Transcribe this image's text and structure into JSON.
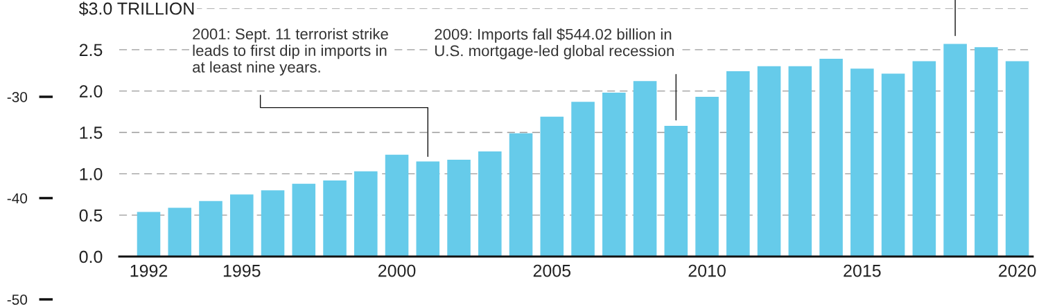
{
  "chart_data": {
    "type": "bar",
    "x": [
      1992,
      1993,
      1994,
      1995,
      1996,
      1997,
      1998,
      1999,
      2000,
      2001,
      2002,
      2003,
      2004,
      2005,
      2006,
      2007,
      2008,
      2009,
      2010,
      2011,
      2012,
      2013,
      2014,
      2015,
      2016,
      2017,
      2018,
      2019,
      2020
    ],
    "values": [
      0.54,
      0.59,
      0.67,
      0.75,
      0.8,
      0.88,
      0.92,
      1.03,
      1.23,
      1.15,
      1.17,
      1.27,
      1.49,
      1.69,
      1.87,
      1.98,
      2.12,
      1.58,
      1.93,
      2.24,
      2.3,
      2.3,
      2.39,
      2.27,
      2.21,
      2.36,
      2.57,
      2.53,
      2.36
    ],
    "color": "#66cbea",
    "xlim": [
      1991.05,
      2020.5
    ],
    "xticks": [
      1992,
      1995,
      2000,
      2005,
      2010,
      2015,
      2020
    ],
    "ylim": [
      0,
      3
    ],
    "yticks": [
      {
        "value": 0.0,
        "label": "0.0"
      },
      {
        "value": 0.5,
        "label": "0.5"
      },
      {
        "value": 1.0,
        "label": "1.0"
      },
      {
        "value": 1.5,
        "label": "1.5"
      },
      {
        "value": 2.0,
        "label": "2.0"
      },
      {
        "value": 2.5,
        "label": "2.5"
      },
      {
        "value": 3.0,
        "label": "$3.0 TRILLION"
      }
    ],
    "y2lim": [
      -50,
      -30
    ],
    "y2ticks": [
      -30,
      -40,
      -50
    ],
    "grid": "y",
    "annotations": [
      {
        "text": "2001: Sept. 11 terrorist strike\nleads to first dip in imports in\nat least nine years.",
        "x": 2001,
        "y": 1.15
      },
      {
        "text": "2009: Imports fall $544.02 billion in\nU.S. mortgage-led global recession",
        "x": 2009,
        "y": 1.58
      }
    ]
  }
}
